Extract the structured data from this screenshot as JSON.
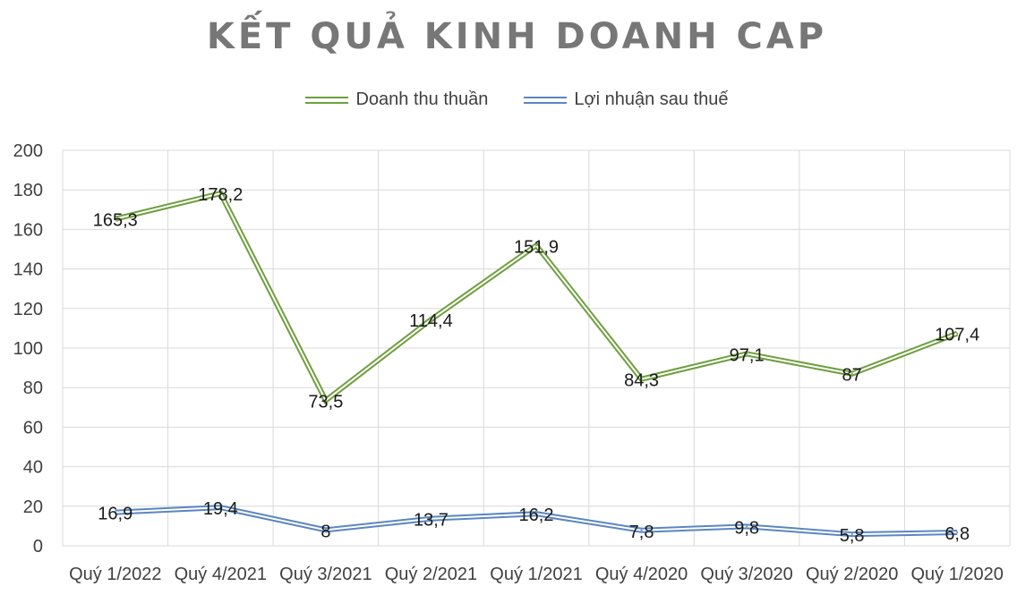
{
  "chart_data": {
    "type": "line",
    "title": "KẾT QUẢ KINH DOANH CAP",
    "categories": [
      "Quý 1/2022",
      "Quý 4/2021",
      "Quý 3/2021",
      "Quý 2/2021",
      "Quý 1/2021",
      "Quý 4/2020",
      "Quý 3/2020",
      "Quý 2/2020",
      "Quý 1/2020"
    ],
    "series": [
      {
        "name": "Doanh thu thuần",
        "color": "#6f9f3e",
        "values": [
          165.3,
          178.2,
          73.5,
          114.4,
          151.9,
          84.3,
          97.1,
          87,
          107.4
        ],
        "labels": [
          "165,3",
          "178,2",
          "73,5",
          "114,4",
          "151,9",
          "84,3",
          "97,1",
          "87",
          "107,4"
        ]
      },
      {
        "name": "Lợi nhuận sau thuế",
        "color": "#5b86c2",
        "values": [
          16.9,
          19.4,
          8,
          13.7,
          16.2,
          7.8,
          9.8,
          5.8,
          6.8
        ],
        "labels": [
          "16,9",
          "19,4",
          "8",
          "13,7",
          "16,2",
          "7,8",
          "9,8",
          "5,8",
          "6,8"
        ]
      }
    ],
    "ylim": [
      0,
      200
    ],
    "yticks": [
      0,
      20,
      40,
      60,
      80,
      100,
      120,
      140,
      160,
      180,
      200
    ],
    "grid": true,
    "legend_position": "top"
  }
}
